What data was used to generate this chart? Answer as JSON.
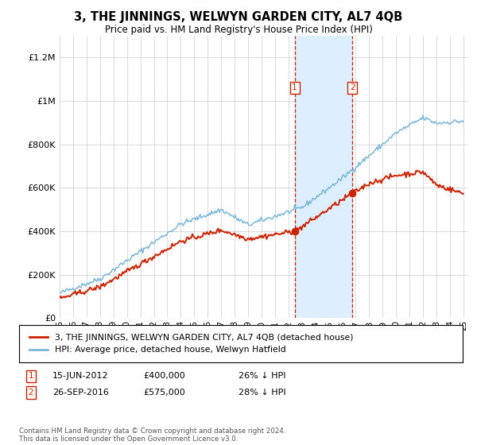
{
  "title": "3, THE JINNINGS, WELWYN GARDEN CITY, AL7 4QB",
  "subtitle": "Price paid vs. HM Land Registry's House Price Index (HPI)",
  "ylim": [
    0,
    1300000
  ],
  "yticks": [
    0,
    200000,
    400000,
    600000,
    800000,
    1000000,
    1200000
  ],
  "xstart_year": 1995,
  "xend_year": 2025,
  "sale1_date": 2012.46,
  "sale1_price": 400000,
  "sale1_label": "1",
  "sale2_date": 2016.74,
  "sale2_price": 575000,
  "sale2_label": "2",
  "hpi_color": "#7ab8d9",
  "price_color": "#cc2200",
  "sale_dot_color": "#cc2200",
  "shaded_region_color": "#ddeeff",
  "dashed_line_color": "#cc2200",
  "legend_line1": "3, THE JINNINGS, WELWYN GARDEN CITY, AL7 4QB (detached house)",
  "legend_line2": "HPI: Average price, detached house, Welwyn Hatfield",
  "annotation1_date": "15-JUN-2012",
  "annotation1_price": "£400,000",
  "annotation1_hpi": "26% ↓ HPI",
  "annotation2_date": "26-SEP-2016",
  "annotation2_price": "£575,000",
  "annotation2_hpi": "28% ↓ HPI",
  "footer": "Contains HM Land Registry data © Crown copyright and database right 2024.\nThis data is licensed under the Open Government Licence v3.0.",
  "background_color": "#ffffff"
}
